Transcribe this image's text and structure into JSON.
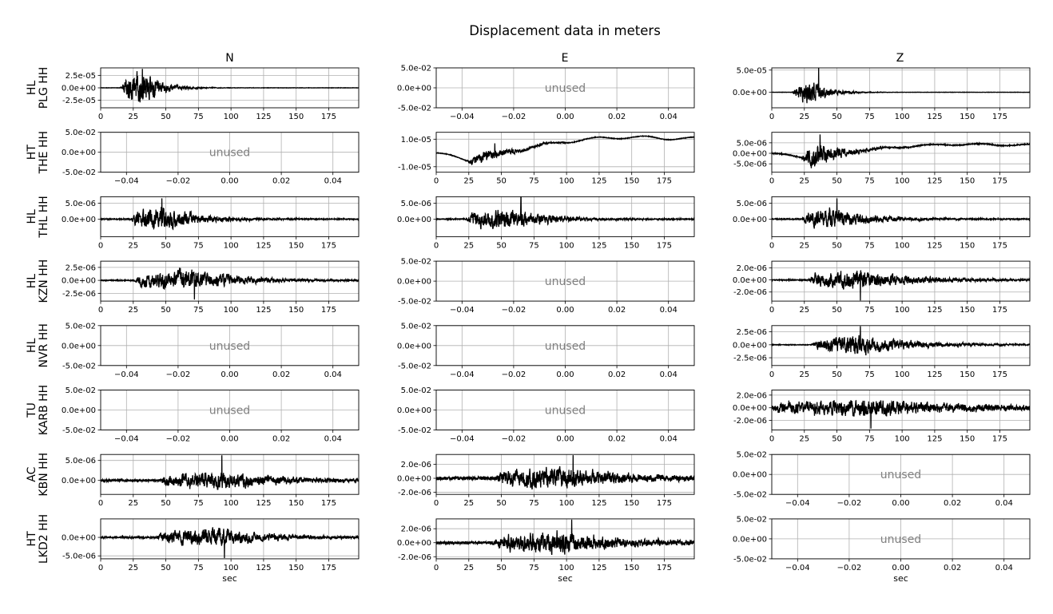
{
  "figure": {
    "title": "Displacement data in meters",
    "column_titles": [
      "N",
      "E",
      "Z"
    ],
    "xlabel": "sec",
    "unused_label": "unused",
    "line_color": "#000000",
    "grid_color": "#b0b0b0",
    "unused_color": "#808080"
  },
  "row_labels": [
    {
      "network": "HL",
      "station_channel": "PLG HH"
    },
    {
      "network": "HT",
      "station_channel": "THE HH"
    },
    {
      "network": "HL",
      "station_channel": "THL HH"
    },
    {
      "network": "HL",
      "station_channel": "KZN HH"
    },
    {
      "network": "HL",
      "station_channel": "NVR HH"
    },
    {
      "network": "TU",
      "station_channel": "KARB HH"
    },
    {
      "network": "AC",
      "station_channel": "KBN HH"
    },
    {
      "network": "HT",
      "station_channel": "LKD2 HH"
    }
  ],
  "chart_data": [
    {
      "type": "line",
      "row": 0,
      "col": 0,
      "used": true,
      "xlim": [
        0,
        198
      ],
      "ylim": [
        -4e-05,
        4e-05
      ],
      "xticks": [
        0,
        25,
        50,
        75,
        100,
        125,
        150,
        175
      ],
      "xtick_labels": [
        "0",
        "25",
        "50",
        "75",
        "100",
        "125",
        "150",
        "175"
      ],
      "yticks": [
        2.5e-05,
        0,
        -2.5e-05
      ],
      "ytick_labels": [
        "2.5e-05",
        "0.0e+00",
        "-2.5e-05"
      ],
      "trace": {
        "seed": 11,
        "onset": 15,
        "peak_time": 32,
        "amplitude": 2.8e-05,
        "decay": 14,
        "noise": 3e-07,
        "drift": 0,
        "spike_time": 32,
        "spike_amp": 3.8e-05
      }
    },
    {
      "type": "line",
      "row": 0,
      "col": 1,
      "used": false,
      "xlim": [
        -0.05,
        0.05
      ],
      "ylim": [
        -0.05,
        0.05
      ],
      "xticks": [
        -0.04,
        -0.02,
        0,
        0.02,
        0.04
      ],
      "xtick_labels": [
        "−0.04",
        "−0.02",
        "0.00",
        "0.02",
        "0.04"
      ],
      "yticks": [
        0.05,
        0,
        -0.05
      ],
      "ytick_labels": [
        "5.0e-02",
        "0.0e+00",
        "-5.0e-02"
      ]
    },
    {
      "type": "line",
      "row": 0,
      "col": 2,
      "used": true,
      "xlim": [
        0,
        198
      ],
      "ylim": [
        -3.5e-05,
        5.5e-05
      ],
      "xticks": [
        0,
        25,
        50,
        75,
        100,
        125,
        150,
        175
      ],
      "xtick_labels": [
        "0",
        "25",
        "50",
        "75",
        "100",
        "125",
        "150",
        "175"
      ],
      "yticks": [
        5e-05,
        0
      ],
      "ytick_labels": [
        "5.0e-05",
        "0.0e+00"
      ],
      "trace": {
        "seed": 12,
        "onset": 15,
        "peak_time": 30,
        "amplitude": 2e-05,
        "decay": 14,
        "noise": 3e-07,
        "drift": 0,
        "spike_time": 36,
        "spike_amp": 5.5e-05
      }
    },
    {
      "type": "line",
      "row": 1,
      "col": 0,
      "used": false,
      "xlim": [
        -0.05,
        0.05
      ],
      "ylim": [
        -0.05,
        0.05
      ],
      "xticks": [
        -0.04,
        -0.02,
        0,
        0.02,
        0.04
      ],
      "xtick_labels": [
        "−0.04",
        "−0.02",
        "0.00",
        "0.02",
        "0.04"
      ],
      "yticks": [
        0.05,
        0,
        -0.05
      ],
      "ytick_labels": [
        "5.0e-02",
        "0.0e+00",
        "-5.0e-02"
      ]
    },
    {
      "type": "line",
      "row": 1,
      "col": 1,
      "used": true,
      "xlim": [
        0,
        198
      ],
      "ylim": [
        -1.4e-05,
        1.5e-05
      ],
      "xticks": [
        0,
        25,
        50,
        75,
        100,
        125,
        150,
        175
      ],
      "xtick_labels": [
        "0",
        "25",
        "50",
        "75",
        "100",
        "125",
        "150",
        "175"
      ],
      "yticks": [
        1e-05,
        -1e-05
      ],
      "ytick_labels": [
        "1.0e-05",
        "-1.0e-05"
      ],
      "trace": {
        "seed": 21,
        "onset": 22,
        "peak_time": 40,
        "amplitude": 3.5e-06,
        "decay": 22,
        "noise": 2e-07,
        "drift": 1,
        "drift_amp": 1.2e-05,
        "spike_time": 45,
        "spike_amp": 7e-06
      }
    },
    {
      "type": "line",
      "row": 1,
      "col": 2,
      "used": true,
      "xlim": [
        0,
        198
      ],
      "ylim": [
        -9e-06,
        1e-05
      ],
      "xticks": [
        0,
        25,
        50,
        75,
        100,
        125,
        150,
        175
      ],
      "xtick_labels": [
        "0",
        "25",
        "50",
        "75",
        "100",
        "125",
        "150",
        "175"
      ],
      "yticks": [
        5e-06,
        0,
        -5e-06
      ],
      "ytick_labels": [
        "5.0e-06",
        "0.0e+00",
        "-5.0e-06"
      ],
      "trace": {
        "seed": 22,
        "onset": 22,
        "peak_time": 35,
        "amplitude": 4.5e-06,
        "decay": 20,
        "noise": 2e-07,
        "drift": 1,
        "drift_amp": 4.5e-06,
        "spike_time": 37,
        "spike_amp": 9e-06
      }
    },
    {
      "type": "line",
      "row": 2,
      "col": 0,
      "used": true,
      "xlim": [
        0,
        198
      ],
      "ylim": [
        -5.5e-06,
        7e-06
      ],
      "xticks": [
        0,
        25,
        50,
        75,
        100,
        125,
        150,
        175
      ],
      "xtick_labels": [
        "0",
        "25",
        "50",
        "75",
        "100",
        "125",
        "150",
        "175"
      ],
      "yticks": [
        5e-06,
        0
      ],
      "ytick_labels": [
        "5.0e-06",
        "0.0e+00"
      ],
      "trace": {
        "seed": 31,
        "onset": 22,
        "peak_time": 47,
        "amplitude": 3e-06,
        "decay": 30,
        "noise": 1.5e-07,
        "drift": 0,
        "spike_time": 47,
        "spike_amp": 6.5e-06
      }
    },
    {
      "type": "line",
      "row": 2,
      "col": 1,
      "used": true,
      "xlim": [
        0,
        198
      ],
      "ylim": [
        -5.5e-06,
        7e-06
      ],
      "xticks": [
        0,
        25,
        50,
        75,
        100,
        125,
        150,
        175
      ],
      "xtick_labels": [
        "0",
        "25",
        "50",
        "75",
        "100",
        "125",
        "150",
        "175"
      ],
      "yticks": [
        5e-06,
        0
      ],
      "ytick_labels": [
        "5.0e-06",
        "0.0e+00"
      ],
      "trace": {
        "seed": 32,
        "onset": 22,
        "peak_time": 55,
        "amplitude": 2.5e-06,
        "decay": 35,
        "noise": 1.5e-07,
        "drift": 0,
        "spike_time": 65,
        "spike_amp": 7e-06
      }
    },
    {
      "type": "line",
      "row": 2,
      "col": 2,
      "used": true,
      "xlim": [
        0,
        198
      ],
      "ylim": [
        -5.5e-06,
        7e-06
      ],
      "xticks": [
        0,
        25,
        50,
        75,
        100,
        125,
        150,
        175
      ],
      "xtick_labels": [
        "0",
        "25",
        "50",
        "75",
        "100",
        "125",
        "150",
        "175"
      ],
      "yticks": [
        5e-06,
        0
      ],
      "ytick_labels": [
        "5.0e-06",
        "0.0e+00"
      ],
      "trace": {
        "seed": 33,
        "onset": 22,
        "peak_time": 45,
        "amplitude": 2.5e-06,
        "decay": 35,
        "noise": 1.5e-07,
        "drift": 0,
        "spike_time": 50,
        "spike_amp": 6.5e-06
      }
    },
    {
      "type": "line",
      "row": 3,
      "col": 0,
      "used": true,
      "xlim": [
        0,
        198
      ],
      "ylim": [
        -4e-06,
        3.7e-06
      ],
      "xticks": [
        0,
        25,
        50,
        75,
        100,
        125,
        150,
        175
      ],
      "xtick_labels": [
        "0",
        "25",
        "50",
        "75",
        "100",
        "125",
        "150",
        "175"
      ],
      "yticks": [
        2.5e-06,
        0,
        -2.5e-06
      ],
      "ytick_labels": [
        "2.5e-06",
        "0.0e+00",
        "-2.5e-06"
      ],
      "trace": {
        "seed": 41,
        "onset": 25,
        "peak_time": 65,
        "amplitude": 1.6e-06,
        "decay": 45,
        "noise": 8e-08,
        "drift": 0,
        "spike_time": 72,
        "spike_amp": -3.7e-06
      }
    },
    {
      "type": "line",
      "row": 3,
      "col": 1,
      "used": false,
      "xlim": [
        -0.05,
        0.05
      ],
      "ylim": [
        -0.05,
        0.05
      ],
      "xticks": [
        -0.04,
        -0.02,
        0,
        0.02,
        0.04
      ],
      "xtick_labels": [
        "−0.04",
        "−0.02",
        "0.00",
        "0.02",
        "0.04"
      ],
      "yticks": [
        0.05,
        0,
        -0.05
      ],
      "ytick_labels": [
        "5.0e-02",
        "0.0e+00",
        "-5.0e-02"
      ]
    },
    {
      "type": "line",
      "row": 3,
      "col": 2,
      "used": true,
      "xlim": [
        0,
        198
      ],
      "ylim": [
        -3.5e-06,
        3.1e-06
      ],
      "xticks": [
        0,
        25,
        50,
        75,
        100,
        125,
        150,
        175
      ],
      "xtick_labels": [
        "0",
        "25",
        "50",
        "75",
        "100",
        "125",
        "150",
        "175"
      ],
      "yticks": [
        2e-06,
        0,
        -2e-06
      ],
      "ytick_labels": [
        "2.0e-06",
        "0.0e+00",
        "-2.0e-06"
      ],
      "trace": {
        "seed": 42,
        "onset": 27,
        "peak_time": 62,
        "amplitude": 1.3e-06,
        "decay": 50,
        "noise": 8e-08,
        "drift": 0,
        "spike_time": 68,
        "spike_amp": -3.4e-06
      }
    },
    {
      "type": "line",
      "row": 4,
      "col": 0,
      "used": false,
      "xlim": [
        -0.05,
        0.05
      ],
      "ylim": [
        -0.05,
        0.05
      ],
      "xticks": [
        -0.04,
        -0.02,
        0,
        0.02,
        0.04
      ],
      "xtick_labels": [
        "−0.04",
        "−0.02",
        "0.00",
        "0.02",
        "0.04"
      ],
      "yticks": [
        0.05,
        0,
        -0.05
      ],
      "ytick_labels": [
        "5.0e-02",
        "0.0e+00",
        "-5.0e-02"
      ]
    },
    {
      "type": "line",
      "row": 4,
      "col": 1,
      "used": false,
      "xlim": [
        -0.05,
        0.05
      ],
      "ylim": [
        -0.05,
        0.05
      ],
      "xticks": [
        -0.04,
        -0.02,
        0,
        0.02,
        0.04
      ],
      "xtick_labels": [
        "−0.04",
        "−0.02",
        "0.00",
        "0.02",
        "0.04"
      ],
      "yticks": [
        0.05,
        0,
        -0.05
      ],
      "ytick_labels": [
        "5.0e-02",
        "0.0e+00",
        "-5.0e-02"
      ]
    },
    {
      "type": "line",
      "row": 4,
      "col": 2,
      "used": true,
      "xlim": [
        0,
        198
      ],
      "ylim": [
        -4e-06,
        3.7e-06
      ],
      "xticks": [
        0,
        25,
        50,
        75,
        100,
        125,
        150,
        175
      ],
      "xtick_labels": [
        "0",
        "25",
        "50",
        "75",
        "100",
        "125",
        "150",
        "175"
      ],
      "yticks": [
        2.5e-06,
        0,
        -2.5e-06
      ],
      "ytick_labels": [
        "2.5e-06",
        "0.0e+00",
        "-2.5e-06"
      ],
      "trace": {
        "seed": 51,
        "onset": 30,
        "peak_time": 65,
        "amplitude": 1.5e-06,
        "decay": 45,
        "noise": 6e-08,
        "drift": 0,
        "spike_time": 68,
        "spike_amp": 3.6e-06
      }
    },
    {
      "type": "line",
      "row": 5,
      "col": 0,
      "used": false,
      "xlim": [
        -0.05,
        0.05
      ],
      "ylim": [
        -0.05,
        0.05
      ],
      "xticks": [
        -0.04,
        -0.02,
        0,
        0.02,
        0.04
      ],
      "xtick_labels": [
        "−0.04",
        "−0.02",
        "0.00",
        "0.02",
        "0.04"
      ],
      "yticks": [
        0.05,
        0,
        -0.05
      ],
      "ytick_labels": [
        "5.0e-02",
        "0.0e+00",
        "-5.0e-02"
      ]
    },
    {
      "type": "line",
      "row": 5,
      "col": 1,
      "used": false,
      "xlim": [
        -0.05,
        0.05
      ],
      "ylim": [
        -0.05,
        0.05
      ],
      "xticks": [
        -0.04,
        -0.02,
        0,
        0.02,
        0.04
      ],
      "xtick_labels": [
        "−0.04",
        "−0.02",
        "0.00",
        "0.02",
        "0.04"
      ],
      "yticks": [
        0.05,
        0,
        -0.05
      ],
      "ytick_labels": [
        "5.0e-02",
        "0.0e+00",
        "-5.0e-02"
      ]
    },
    {
      "type": "line",
      "row": 5,
      "col": 2,
      "used": true,
      "xlim": [
        0,
        198
      ],
      "ylim": [
        -3.5e-06,
        2.8e-06
      ],
      "xticks": [
        0,
        25,
        50,
        75,
        100,
        125,
        150,
        175
      ],
      "xtick_labels": [
        "0",
        "25",
        "50",
        "75",
        "100",
        "125",
        "150",
        "175"
      ],
      "yticks": [
        2e-06,
        0,
        -2e-06
      ],
      "ytick_labels": [
        "2.0e-06",
        "0.0e+00",
        "-2.0e-06"
      ],
      "trace": {
        "seed": 61,
        "onset": 0,
        "peak_time": 85,
        "amplitude": 1e-06,
        "decay": 60,
        "noise": 3.5e-07,
        "drift": 0,
        "spike_time": 76,
        "spike_amp": -3.3e-06
      }
    },
    {
      "type": "line",
      "row": 6,
      "col": 0,
      "used": true,
      "xlim": [
        0,
        198
      ],
      "ylim": [
        -3.5e-06,
        6.5e-06
      ],
      "xticks": [
        0,
        25,
        50,
        75,
        100,
        125,
        150,
        175
      ],
      "xtick_labels": [
        "0",
        "25",
        "50",
        "75",
        "100",
        "125",
        "150",
        "175"
      ],
      "yticks": [
        5e-06,
        0
      ],
      "ytick_labels": [
        "5.0e-06",
        "0.0e+00"
      ],
      "trace": {
        "seed": 71,
        "onset": 45,
        "peak_time": 90,
        "amplitude": 1.8e-06,
        "decay": 50,
        "noise": 3e-07,
        "drift": 0,
        "spike_time": 93,
        "spike_amp": 6.3e-06
      }
    },
    {
      "type": "line",
      "row": 6,
      "col": 1,
      "used": true,
      "xlim": [
        0,
        198
      ],
      "ylim": [
        -2.3e-06,
        3.4e-06
      ],
      "xticks": [
        0,
        25,
        50,
        75,
        100,
        125,
        150,
        175
      ],
      "xtick_labels": [
        "0",
        "25",
        "50",
        "75",
        "100",
        "125",
        "150",
        "175"
      ],
      "yticks": [
        2e-06,
        0,
        -2e-06
      ],
      "ytick_labels": [
        "2.0e-06",
        "0.0e+00",
        "-2.0e-06"
      ],
      "trace": {
        "seed": 72,
        "onset": 45,
        "peak_time": 90,
        "amplitude": 1.2e-06,
        "decay": 60,
        "noise": 2.5e-07,
        "drift": 0,
        "spike_time": 105,
        "spike_amp": 3.3e-06
      }
    },
    {
      "type": "line",
      "row": 6,
      "col": 2,
      "used": false,
      "xlim": [
        -0.05,
        0.05
      ],
      "ylim": [
        -0.05,
        0.05
      ],
      "xticks": [
        -0.04,
        -0.02,
        0,
        0.02,
        0.04
      ],
      "xtick_labels": [
        "−0.04",
        "−0.02",
        "0.00",
        "0.02",
        "0.04"
      ],
      "yticks": [
        0.05,
        0,
        -0.05
      ],
      "ytick_labels": [
        "5.0e-02",
        "0.0e+00",
        "-5.0e-02"
      ]
    },
    {
      "type": "line",
      "row": 7,
      "col": 0,
      "used": true,
      "xlim": [
        0,
        198
      ],
      "ylim": [
        -5.8e-06,
        5e-06
      ],
      "xticks": [
        0,
        25,
        50,
        75,
        100,
        125,
        150,
        175
      ],
      "xtick_labels": [
        "0",
        "25",
        "50",
        "75",
        "100",
        "125",
        "150",
        "175"
      ],
      "yticks": [
        0,
        -5e-06
      ],
      "ytick_labels": [
        "0.0e+00",
        "-5.0e-06"
      ],
      "trace": {
        "seed": 81,
        "onset": 42,
        "peak_time": 90,
        "amplitude": 2e-06,
        "decay": 40,
        "noise": 2.5e-07,
        "drift": 0,
        "spike_time": 95,
        "spike_amp": -5.6e-06
      }
    },
    {
      "type": "line",
      "row": 7,
      "col": 1,
      "used": true,
      "xlim": [
        0,
        198
      ],
      "ylim": [
        -2.3e-06,
        3.4e-06
      ],
      "xticks": [
        0,
        25,
        50,
        75,
        100,
        125,
        150,
        175
      ],
      "xtick_labels": [
        "0",
        "25",
        "50",
        "75",
        "100",
        "125",
        "150",
        "175"
      ],
      "yticks": [
        2e-06,
        0,
        -2e-06
      ],
      "ytick_labels": [
        "2.0e-06",
        "0.0e+00",
        "-2.0e-06"
      ],
      "trace": {
        "seed": 82,
        "onset": 42,
        "peak_time": 92,
        "amplitude": 1.3e-06,
        "decay": 55,
        "noise": 2e-07,
        "drift": 0,
        "spike_time": 104,
        "spike_amp": 3.3e-06
      }
    },
    {
      "type": "line",
      "row": 7,
      "col": 2,
      "used": false,
      "xlim": [
        -0.05,
        0.05
      ],
      "ylim": [
        -0.05,
        0.05
      ],
      "xticks": [
        -0.04,
        -0.02,
        0,
        0.02,
        0.04
      ],
      "xtick_labels": [
        "−0.04",
        "−0.02",
        "0.00",
        "0.02",
        "0.04"
      ],
      "yticks": [
        0.05,
        0,
        -0.05
      ],
      "ytick_labels": [
        "5.0e-02",
        "0.0e+00",
        "-5.0e-02"
      ]
    }
  ]
}
